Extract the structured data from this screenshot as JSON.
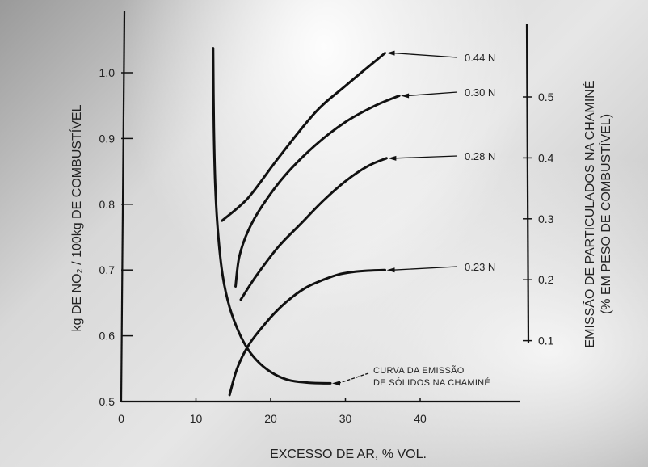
{
  "chart_data": {
    "type": "line",
    "xlabel": "EXCESSO DE AR, % VOL.",
    "ylabel_left": "kg DE NO₂ / 100kg DE COMBUSTÍVEL",
    "ylabel_right_line1": "EMISSÃO DE PARTICULADOS NA CHAMINÉ",
    "ylabel_right_line2": "(% EM PESO DE COMBUSTÍVEL)",
    "xlim": [
      0,
      45
    ],
    "ylim_left": [
      0.5,
      1.05
    ],
    "ylim_right": [
      0,
      0.6
    ],
    "x_ticks": [
      "0",
      "10",
      "20",
      "30",
      "40"
    ],
    "y_left_ticks": [
      "0.5",
      "0.6",
      "0.7",
      "0.8",
      "0.9",
      "1.0"
    ],
    "y_right_ticks": [
      "0.1",
      "0.2",
      "0.3",
      "0.4",
      "0.5"
    ],
    "grid": false,
    "series": [
      {
        "name": "0.44 N",
        "axis": "left",
        "x": [
          13.5,
          17,
          21,
          26,
          30,
          35.3
        ],
        "y": [
          0.775,
          0.81,
          0.87,
          0.94,
          0.98,
          1.03
        ]
      },
      {
        "name": "0.30 N",
        "axis": "left",
        "x": [
          15.3,
          15.8,
          17,
          19,
          22,
          26,
          30,
          34,
          37.2
        ],
        "y": [
          0.675,
          0.72,
          0.76,
          0.8,
          0.845,
          0.89,
          0.925,
          0.95,
          0.965
        ]
      },
      {
        "name": "0.28 N",
        "axis": "left",
        "x": [
          16,
          18,
          21,
          24,
          27,
          30,
          33,
          35.5
        ],
        "y": [
          0.655,
          0.69,
          0.735,
          0.77,
          0.805,
          0.835,
          0.858,
          0.87
        ]
      },
      {
        "name": "0.23 N",
        "axis": "left",
        "x": [
          14.5,
          15.5,
          17,
          19,
          21,
          23,
          25,
          27,
          29,
          31,
          33,
          35.3
        ],
        "y": [
          0.51,
          0.55,
          0.585,
          0.615,
          0.64,
          0.66,
          0.675,
          0.685,
          0.693,
          0.697,
          0.699,
          0.7
        ]
      },
      {
        "name": "CURVA DA EMISSÃO DE SÓLIDOS NA CHAMINÉ",
        "axis": "right",
        "x": [
          12.3,
          12.4,
          12.6,
          13,
          13.6,
          14.5,
          15.7,
          17,
          18.6,
          20.5,
          22.5,
          25,
          28
        ],
        "y": [
          0.58,
          0.45,
          0.35,
          0.27,
          0.205,
          0.155,
          0.115,
          0.085,
          0.062,
          0.045,
          0.035,
          0.031,
          0.03
        ]
      }
    ],
    "series_labels": [
      "0.44 N",
      "0.30 N",
      "0.28 N",
      "0.23 N"
    ],
    "annotation_line1": "CURVA DA EMISSÃO",
    "annotation_line2": "DE SÓLIDOS NA CHAMINÉ",
    "colors": {
      "ink": "#111111",
      "paper": "#d8d8d8"
    }
  }
}
